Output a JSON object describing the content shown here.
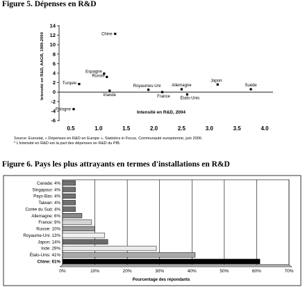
{
  "figure5": {
    "title": "Figure 5. Dépenses en R&D",
    "source_line1": "Source: Eurostat, « Dépenses en R&D en Europe », Statistics in Focus, Communauté européenne, juin 2006.",
    "source_line2": "* L'intensité en R&D est la part des dépenses en R&D du PIB.",
    "chart_data": {
      "type": "scatter",
      "xlabel": "Intensité en R&D, 2004",
      "ylabel": "Intensité en R&D, AAGR, 1999-2004",
      "xlim": [
        0.5,
        4.0
      ],
      "ylim": [
        -6,
        14
      ],
      "x_ticks": [
        "0.5",
        "1.0",
        "1.5",
        "2.0",
        "2.5",
        "3.0",
        "3.5",
        "4.0"
      ],
      "y_ticks": [
        "14",
        "12",
        "10",
        "8",
        "6",
        "4",
        "2",
        "0",
        "-2",
        "-4",
        "-6"
      ],
      "grid": false,
      "points": [
        {
          "label": "Chine",
          "x": 1.3,
          "y": 12.3
        },
        {
          "label": "Espagne",
          "x": 1.1,
          "y": 3.9
        },
        {
          "label": "Russie",
          "x": 1.15,
          "y": 3.2
        },
        {
          "label": "Turquie",
          "x": 0.65,
          "y": 1.7
        },
        {
          "label": "Irlande",
          "x": 1.2,
          "y": 0.3
        },
        {
          "label": "Royaumes-Uni",
          "x": 1.9,
          "y": 0.5
        },
        {
          "label": "France",
          "x": 2.15,
          "y": 0.0
        },
        {
          "label": "Allemagne",
          "x": 2.5,
          "y": 0.6
        },
        {
          "label": "États-Unis",
          "x": 2.6,
          "y": -0.5
        },
        {
          "label": "Japon",
          "x": 3.15,
          "y": 1.6
        },
        {
          "label": "Suède",
          "x": 3.75,
          "y": 0.6
        },
        {
          "label": "Pologne",
          "x": 0.55,
          "y": -3.6
        }
      ]
    }
  },
  "figure6": {
    "title": "Figure 6. Pays les plus attrayants en termes d'installations en R&D",
    "chart_data": {
      "type": "bar",
      "orientation": "horizontal",
      "xlabel": "Pourcentage des répondants",
      "xlim": [
        0,
        70
      ],
      "x_ticks": [
        "0%",
        "10%",
        "20%",
        "30%",
        "40%",
        "50%",
        "60%",
        "70%"
      ],
      "categories": [
        "Canada: 4%",
        "Singapour: 4%",
        "Pays-Bas: 4%",
        "Taiwan: 4%",
        "Corée du Sud: 4%",
        "Allemagne: 6%",
        "France: 9%",
        "Russie: 10%",
        "Royaume-Uni: 13%",
        "Japon: 14%",
        "Inde: 29%",
        "États-Unis: 41%",
        "Chine: 61%"
      ],
      "values": [
        4,
        4,
        4,
        4,
        4,
        6,
        9,
        10,
        13,
        14,
        29,
        41,
        61
      ],
      "colors": [
        "#707070",
        "#707070",
        "#707070",
        "#707070",
        "#707070",
        "#8a8a8a",
        "#d4d4d4",
        "#9a9a9a",
        "#f0f0f0",
        "#6a6a6a",
        "#eaeaea",
        "#a8a8a8",
        "#000000"
      ],
      "highlight": "Chine: 61%"
    }
  }
}
